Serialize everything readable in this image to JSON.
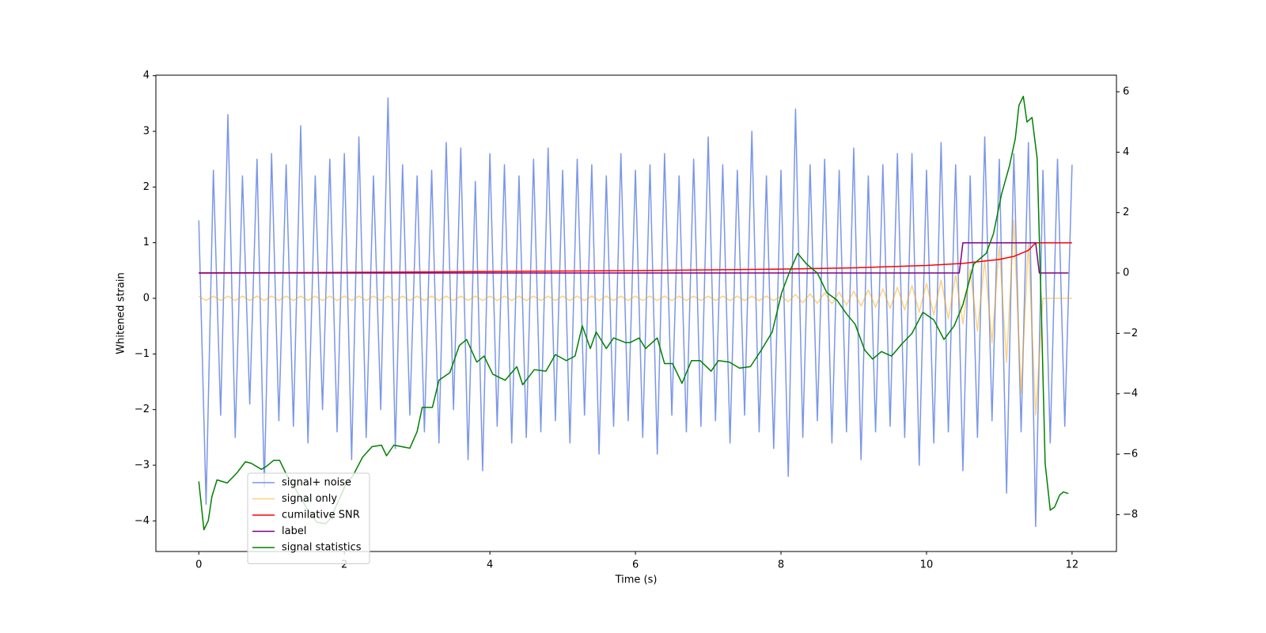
{
  "chart_data": {
    "type": "line",
    "xlabel": "Time (s)",
    "ylabel": "Whitened strain",
    "xlim": [
      -0.59,
      12.61
    ],
    "ylim": [
      -4.55,
      4.01
    ],
    "y2lim": [
      -9.22,
      6.55
    ],
    "xticks": [
      0,
      2,
      4,
      6,
      8,
      10,
      12
    ],
    "yticks": [
      {
        "value": -4,
        "label": "−4"
      },
      {
        "value": -3,
        "label": "−3"
      },
      {
        "value": -2,
        "label": "−2"
      },
      {
        "value": -1,
        "label": "−1"
      },
      0,
      1,
      2,
      3,
      4
    ],
    "y2ticks": [
      {
        "value": -8,
        "label": "−8"
      },
      {
        "value": -6,
        "label": "−6"
      },
      {
        "value": -4,
        "label": "−4"
      },
      {
        "value": -2,
        "label": "−2"
      },
      0,
      2,
      4,
      6
    ],
    "legend": "lower left",
    "x": [
      0,
      0.1,
      0.2,
      0.3,
      0.4,
      0.5,
      0.6,
      0.7,
      0.8,
      0.9,
      1,
      1.1,
      1.2,
      1.3,
      1.4,
      1.5,
      1.6,
      1.7,
      1.8,
      1.9,
      2,
      2.1,
      2.2,
      2.3,
      2.4,
      2.5,
      2.6,
      2.7,
      2.8,
      2.9,
      3,
      3.1,
      3.2,
      3.3,
      3.4,
      3.5,
      3.6,
      3.7,
      3.8,
      3.9,
      4,
      4.1,
      4.2,
      4.3,
      4.4,
      4.5,
      4.6,
      4.7,
      4.8,
      4.9,
      5,
      5.1,
      5.2,
      5.3,
      5.4,
      5.5,
      5.6,
      5.7,
      5.8,
      5.9,
      6,
      6.1,
      6.2,
      6.3,
      6.4,
      6.5,
      6.6,
      6.7,
      6.8,
      6.9,
      7,
      7.1,
      7.2,
      7.3,
      7.4,
      7.5,
      7.6,
      7.7,
      7.8,
      7.9,
      8,
      8.1,
      8.2,
      8.3,
      8.4,
      8.5,
      8.6,
      8.7,
      8.8,
      8.9,
      9,
      9.1,
      9.2,
      9.3,
      9.4,
      9.5,
      9.6,
      9.7,
      9.8,
      9.9,
      10,
      10.1,
      10.2,
      10.3,
      10.4,
      10.5,
      10.6,
      10.7,
      10.8,
      10.9,
      11,
      11.1,
      11.2,
      11.3,
      11.4,
      11.5,
      11.6,
      11.7,
      11.8,
      11.9,
      12
    ],
    "series": [
      {
        "name": "signal+ noise",
        "color": "#4169e1",
        "alpha": 0.7,
        "values": [
          1.4,
          -3.7,
          2.3,
          -2.1,
          3.3,
          -2.5,
          2.2,
          -1.9,
          2.5,
          -3.4,
          2.6,
          -2.2,
          2.4,
          -2.3,
          3.1,
          -2.6,
          2.2,
          -2.0,
          2.5,
          -2.4,
          2.6,
          -2.9,
          2.9,
          -2.5,
          2.2,
          -2.0,
          3.6,
          -2.7,
          2.4,
          -2.1,
          2.2,
          -2.4,
          2.3,
          -2.6,
          2.8,
          -2.0,
          2.7,
          -2.9,
          2.1,
          -3.1,
          2.6,
          -2.3,
          2.4,
          -2.6,
          2.2,
          -2.5,
          2.5,
          -2.4,
          2.7,
          -2.2,
          2.3,
          -2.6,
          2.5,
          -2.1,
          2.4,
          -2.8,
          2.2,
          -2.3,
          2.6,
          -2.2,
          2.3,
          -2.5,
          2.4,
          -2.8,
          2.6,
          -2.1,
          2.2,
          -2.4,
          2.5,
          -2.3,
          2.9,
          -2.2,
          2.4,
          -2.6,
          2.3,
          -2.1,
          3.0,
          -2.4,
          2.2,
          -2.7,
          2.3,
          -3.2,
          3.4,
          -2.5,
          2.4,
          -2.2,
          2.5,
          -2.6,
          2.3,
          -2.4,
          2.7,
          -2.9,
          2.2,
          -2.4,
          2.4,
          -2.3,
          2.6,
          -2.5,
          2.6,
          -3.0,
          2.3,
          -2.6,
          2.8,
          -2.4,
          2.4,
          -3.1,
          2.2,
          -2.5,
          2.9,
          -2.2,
          2.5,
          -3.5,
          2.6,
          -2.4,
          2.8,
          -4.1,
          2.3,
          -2.6,
          2.5,
          -2.3,
          2.4
        ]
      },
      {
        "name": "signal only",
        "color": "#ffa500",
        "alpha": 0.5,
        "values": [
          0.04,
          -0.04,
          0.04,
          -0.04,
          0.04,
          -0.04,
          0.04,
          -0.04,
          0.04,
          -0.04,
          0.04,
          -0.04,
          0.04,
          -0.04,
          0.04,
          -0.04,
          0.04,
          -0.04,
          0.04,
          -0.04,
          0.04,
          -0.04,
          0.04,
          -0.04,
          0.04,
          -0.04,
          0.04,
          -0.04,
          0.04,
          -0.04,
          0.04,
          -0.04,
          0.04,
          -0.04,
          0.04,
          -0.04,
          0.04,
          -0.04,
          0.04,
          -0.04,
          0.04,
          -0.04,
          0.04,
          -0.04,
          0.04,
          -0.04,
          0.04,
          -0.04,
          0.04,
          -0.04,
          0.04,
          -0.04,
          0.04,
          -0.04,
          0.04,
          -0.04,
          0.04,
          -0.04,
          0.04,
          -0.04,
          0.04,
          -0.04,
          0.04,
          -0.04,
          0.04,
          -0.04,
          0.04,
          -0.04,
          0.04,
          -0.04,
          0.04,
          -0.04,
          0.04,
          -0.04,
          0.04,
          -0.04,
          0.04,
          -0.04,
          0.04,
          -0.04,
          0.04,
          -0.06,
          0.07,
          -0.08,
          0.08,
          -0.09,
          0.1,
          -0.1,
          0.11,
          -0.12,
          0.13,
          -0.14,
          0.15,
          -0.16,
          0.17,
          -0.18,
          0.2,
          -0.21,
          0.23,
          -0.25,
          0.27,
          -0.3,
          0.33,
          -0.37,
          0.41,
          -0.46,
          0.52,
          -0.59,
          0.68,
          -0.8,
          0.95,
          -1.15,
          1.4,
          -1.7,
          1.0,
          -2.1,
          0,
          0,
          0,
          0,
          0
        ]
      },
      {
        "name": "cumilative SNR",
        "color": "#ff0000",
        "axis": "y2",
        "x": [
          0,
          2,
          4,
          6,
          8,
          9,
          10,
          10.5,
          11,
          11.2,
          11.4,
          11.5,
          11.55,
          12
        ],
        "values": [
          0,
          0.02,
          0.05,
          0.08,
          0.13,
          0.17,
          0.25,
          0.32,
          0.45,
          0.55,
          0.75,
          1.0,
          1.0,
          1.0
        ]
      },
      {
        "name": "label",
        "color": "#800080",
        "axis": "y2",
        "x": [
          0,
          10.45,
          10.5,
          11.5,
          11.55,
          11.95
        ],
        "values": [
          0,
          0,
          1,
          1,
          0,
          0
        ]
      },
      {
        "name": "signal statistics",
        "color": "#008000",
        "axis": "y2",
        "x": [
          0,
          0.07,
          0.13,
          0.18,
          0.25,
          0.39,
          0.53,
          0.64,
          0.72,
          0.86,
          0.93,
          1.03,
          1.11,
          1.21,
          1.34,
          1.5,
          1.62,
          1.74,
          1.82,
          1.89,
          2.01,
          2.12,
          2.25,
          2.38,
          2.51,
          2.58,
          2.68,
          2.79,
          2.9,
          3.0,
          3.07,
          3.21,
          3.3,
          3.45,
          3.58,
          3.68,
          3.82,
          3.92,
          4.04,
          4.21,
          4.37,
          4.45,
          4.61,
          4.77,
          4.9,
          5.05,
          5.17,
          5.27,
          5.38,
          5.46,
          5.6,
          5.7,
          5.86,
          5.93,
          6.05,
          6.14,
          6.3,
          6.4,
          6.51,
          6.64,
          6.77,
          6.89,
          7.04,
          7.14,
          7.29,
          7.43,
          7.58,
          7.73,
          7.88,
          8.01,
          8.12,
          8.23,
          8.35,
          8.5,
          8.63,
          8.77,
          8.9,
          9.02,
          9.15,
          9.26,
          9.38,
          9.52,
          9.66,
          9.8,
          9.95,
          10.1,
          10.24,
          10.38,
          10.5,
          10.65,
          10.82,
          10.92,
          11.03,
          11.14,
          11.22,
          11.27,
          11.33,
          11.38,
          11.45,
          11.52,
          11.58,
          11.63,
          11.7,
          11.76,
          11.83,
          11.88,
          11.95
        ],
        "values": [
          -6.9,
          -8.5,
          -8.2,
          -7.4,
          -6.85,
          -6.95,
          -6.6,
          -6.25,
          -6.3,
          -6.5,
          -6.4,
          -6.2,
          -6.2,
          -6.7,
          -7.2,
          -7.85,
          -8.25,
          -8.3,
          -8.1,
          -7.7,
          -7.05,
          -6.7,
          -6.1,
          -5.75,
          -5.7,
          -6.05,
          -5.7,
          -5.75,
          -5.8,
          -5.25,
          -4.45,
          -4.45,
          -3.55,
          -3.3,
          -2.4,
          -2.2,
          -2.95,
          -2.75,
          -3.35,
          -3.55,
          -3.1,
          -3.7,
          -3.2,
          -3.25,
          -2.7,
          -2.9,
          -2.75,
          -1.75,
          -2.5,
          -1.95,
          -2.5,
          -2.15,
          -2.3,
          -2.3,
          -2.15,
          -2.5,
          -2.15,
          -3.0,
          -3.0,
          -3.65,
          -2.9,
          -2.9,
          -3.25,
          -2.9,
          -2.95,
          -3.15,
          -3.1,
          -2.55,
          -1.95,
          -0.65,
          0.05,
          0.65,
          0.3,
          0,
          -0.65,
          -0.9,
          -1.35,
          -1.7,
          -2.55,
          -2.85,
          -2.6,
          -2.75,
          -2.35,
          -2.0,
          -1.3,
          -1.55,
          -2.2,
          -1.75,
          -1.05,
          0.3,
          0.65,
          1.3,
          2.6,
          3.55,
          4.45,
          5.55,
          5.85,
          5.0,
          5.15,
          3.8,
          -1.45,
          -6.3,
          -7.85,
          -7.75,
          -7.35,
          -7.25,
          -7.3
        ]
      }
    ]
  }
}
